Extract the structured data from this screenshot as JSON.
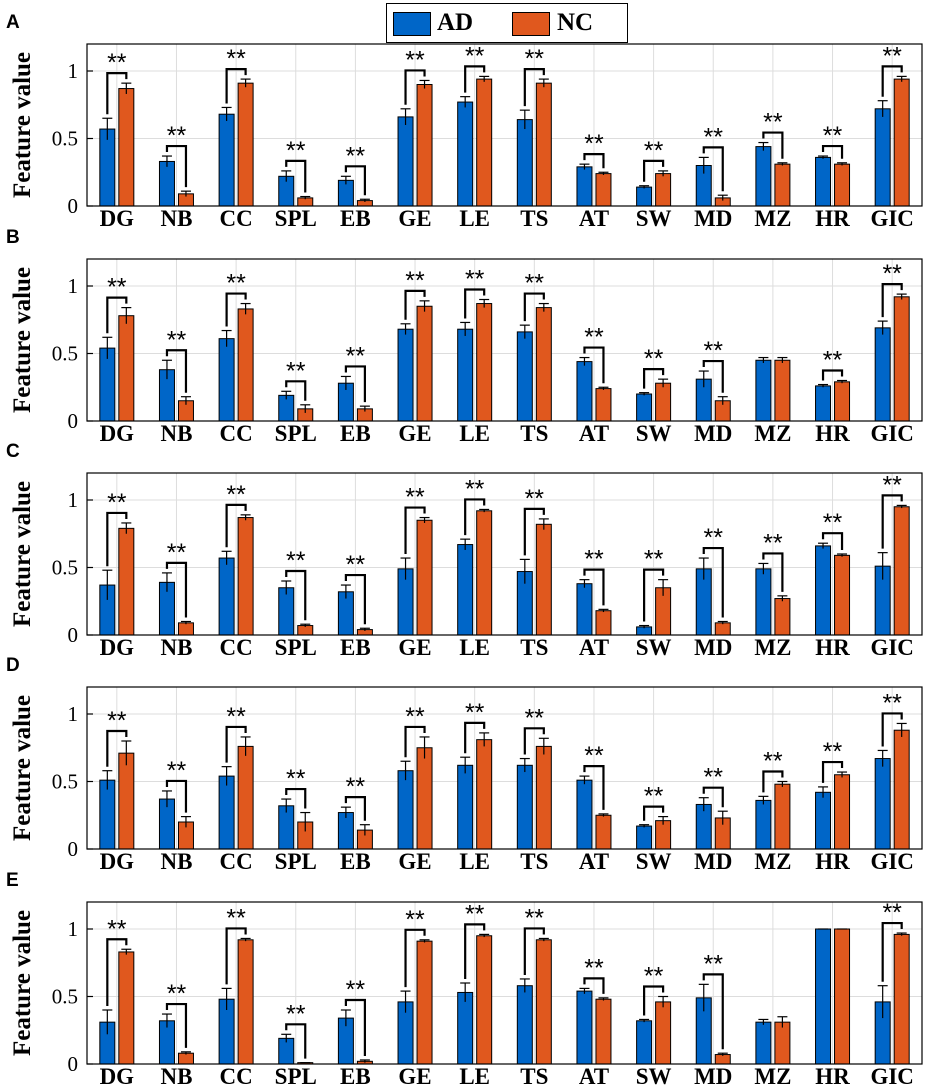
{
  "legend": {
    "ad_label": "AD",
    "nc_label": "NC",
    "ad_color": "#0066c8",
    "nc_color": "#e0581e"
  },
  "axis_ylabel": "Feature value",
  "significance_label": "**",
  "y_ticks": [
    0,
    0.5,
    1
  ],
  "y_tick_labels": [
    "0",
    "0.5",
    "1"
  ],
  "chart_data": [
    {
      "panel": "A",
      "type": "bar",
      "ylabel": "Feature value",
      "ylim": [
        0,
        1.2
      ],
      "categories": [
        "DG",
        "NB",
        "CC",
        "SPL",
        "EB",
        "GE",
        "LE",
        "TS",
        "AT",
        "SW",
        "MD",
        "MZ",
        "HR",
        "GIC"
      ],
      "series": [
        {
          "name": "AD",
          "values": [
            0.57,
            0.33,
            0.68,
            0.22,
            0.19,
            0.66,
            0.77,
            0.64,
            0.29,
            0.14,
            0.3,
            0.44,
            0.36,
            0.72
          ],
          "errors": [
            0.08,
            0.04,
            0.05,
            0.04,
            0.03,
            0.06,
            0.04,
            0.07,
            0.02,
            0.01,
            0.06,
            0.03,
            0.01,
            0.06
          ]
        },
        {
          "name": "NC",
          "values": [
            0.87,
            0.09,
            0.91,
            0.06,
            0.04,
            0.9,
            0.94,
            0.91,
            0.24,
            0.24,
            0.06,
            0.31,
            0.31,
            0.94
          ],
          "errors": [
            0.04,
            0.02,
            0.03,
            0.01,
            0.01,
            0.03,
            0.02,
            0.03,
            0.01,
            0.02,
            0.02,
            0.01,
            0.01,
            0.02
          ]
        }
      ],
      "significant": [
        true,
        true,
        true,
        true,
        true,
        true,
        true,
        true,
        true,
        true,
        true,
        true,
        true,
        true
      ]
    },
    {
      "panel": "B",
      "type": "bar",
      "ylabel": "Feature value",
      "ylim": [
        0,
        1.2
      ],
      "categories": [
        "DG",
        "NB",
        "CC",
        "SPL",
        "EB",
        "GE",
        "LE",
        "TS",
        "AT",
        "SW",
        "MD",
        "MZ",
        "HR",
        "GIC"
      ],
      "series": [
        {
          "name": "AD",
          "values": [
            0.54,
            0.38,
            0.61,
            0.19,
            0.28,
            0.68,
            0.68,
            0.66,
            0.44,
            0.2,
            0.31,
            0.45,
            0.26,
            0.69
          ],
          "errors": [
            0.08,
            0.07,
            0.06,
            0.03,
            0.05,
            0.04,
            0.05,
            0.05,
            0.03,
            0.01,
            0.06,
            0.02,
            0.01,
            0.05
          ]
        },
        {
          "name": "NC",
          "values": [
            0.78,
            0.15,
            0.83,
            0.09,
            0.09,
            0.85,
            0.87,
            0.84,
            0.24,
            0.28,
            0.15,
            0.45,
            0.29,
            0.92
          ],
          "errors": [
            0.06,
            0.03,
            0.04,
            0.03,
            0.02,
            0.04,
            0.03,
            0.03,
            0.01,
            0.03,
            0.03,
            0.02,
            0.01,
            0.02
          ]
        }
      ],
      "significant": [
        true,
        true,
        true,
        true,
        true,
        true,
        true,
        true,
        true,
        true,
        true,
        false,
        true,
        true
      ]
    },
    {
      "panel": "C",
      "type": "bar",
      "ylabel": "Feature value",
      "ylim": [
        0,
        1.2
      ],
      "categories": [
        "DG",
        "NB",
        "CC",
        "SPL",
        "EB",
        "GE",
        "LE",
        "TS",
        "AT",
        "SW",
        "MD",
        "MZ",
        "HR",
        "GIC"
      ],
      "series": [
        {
          "name": "AD",
          "values": [
            0.37,
            0.39,
            0.57,
            0.35,
            0.32,
            0.49,
            0.67,
            0.47,
            0.38,
            0.06,
            0.49,
            0.49,
            0.66,
            0.51
          ],
          "errors": [
            0.11,
            0.07,
            0.05,
            0.05,
            0.05,
            0.08,
            0.04,
            0.09,
            0.03,
            0.01,
            0.08,
            0.04,
            0.02,
            0.1
          ]
        },
        {
          "name": "NC",
          "values": [
            0.79,
            0.09,
            0.87,
            0.07,
            0.04,
            0.85,
            0.92,
            0.82,
            0.18,
            0.35,
            0.09,
            0.27,
            0.59,
            0.95
          ],
          "errors": [
            0.04,
            0.01,
            0.02,
            0.01,
            0.01,
            0.02,
            0.01,
            0.04,
            0.01,
            0.06,
            0.01,
            0.02,
            0.01,
            0.01
          ]
        }
      ],
      "significant": [
        true,
        true,
        true,
        true,
        true,
        true,
        true,
        true,
        true,
        true,
        true,
        true,
        true,
        true
      ]
    },
    {
      "panel": "D",
      "type": "bar",
      "ylabel": "Feature value",
      "ylim": [
        0,
        1.2
      ],
      "categories": [
        "DG",
        "NB",
        "CC",
        "SPL",
        "EB",
        "GE",
        "LE",
        "TS",
        "AT",
        "SW",
        "MD",
        "MZ",
        "HR",
        "GIC"
      ],
      "series": [
        {
          "name": "AD",
          "values": [
            0.51,
            0.37,
            0.54,
            0.32,
            0.27,
            0.58,
            0.62,
            0.62,
            0.51,
            0.17,
            0.33,
            0.36,
            0.42,
            0.67
          ],
          "errors": [
            0.07,
            0.06,
            0.07,
            0.05,
            0.04,
            0.07,
            0.06,
            0.05,
            0.03,
            0.01,
            0.05,
            0.03,
            0.04,
            0.06
          ]
        },
        {
          "name": "NC",
          "values": [
            0.71,
            0.2,
            0.76,
            0.2,
            0.14,
            0.75,
            0.81,
            0.76,
            0.25,
            0.21,
            0.23,
            0.48,
            0.55,
            0.88
          ],
          "errors": [
            0.09,
            0.04,
            0.07,
            0.07,
            0.04,
            0.08,
            0.05,
            0.06,
            0.01,
            0.03,
            0.05,
            0.02,
            0.02,
            0.05
          ]
        }
      ],
      "significant": [
        true,
        true,
        true,
        true,
        true,
        true,
        true,
        true,
        true,
        true,
        true,
        true,
        true,
        true
      ]
    },
    {
      "panel": "E",
      "type": "bar",
      "ylabel": "Feature value",
      "ylim": [
        0,
        1.2
      ],
      "categories": [
        "DG",
        "NB",
        "CC",
        "SPL",
        "EB",
        "GE",
        "LE",
        "TS",
        "AT",
        "SW",
        "MD",
        "MZ",
        "HR",
        "GIC"
      ],
      "series": [
        {
          "name": "AD",
          "values": [
            0.31,
            0.32,
            0.48,
            0.19,
            0.34,
            0.46,
            0.53,
            0.58,
            0.54,
            0.32,
            0.49,
            0.31,
            1.0,
            0.46
          ],
          "errors": [
            0.09,
            0.05,
            0.08,
            0.03,
            0.06,
            0.08,
            0.07,
            0.05,
            0.02,
            0.01,
            0.1,
            0.02,
            0.0,
            0.12
          ]
        },
        {
          "name": "NC",
          "values": [
            0.83,
            0.08,
            0.92,
            0.01,
            0.02,
            0.91,
            0.95,
            0.92,
            0.48,
            0.46,
            0.07,
            0.31,
            1.0,
            0.96
          ],
          "errors": [
            0.02,
            0.01,
            0.01,
            0.0,
            0.01,
            0.01,
            0.01,
            0.01,
            0.01,
            0.04,
            0.01,
            0.04,
            0.0,
            0.01
          ]
        }
      ],
      "significant": [
        true,
        true,
        true,
        true,
        true,
        true,
        true,
        true,
        true,
        true,
        true,
        false,
        false,
        true
      ]
    }
  ]
}
